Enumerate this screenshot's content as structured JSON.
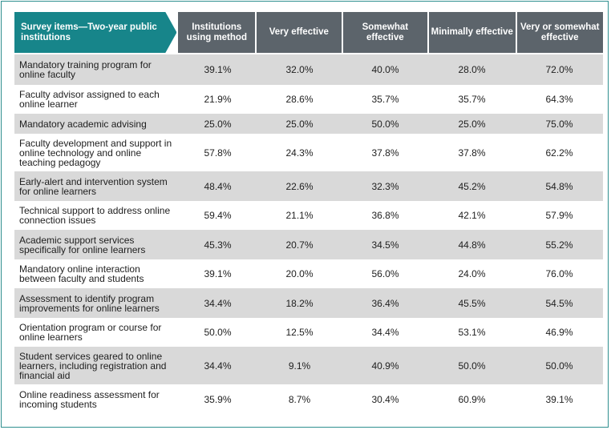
{
  "headers": [
    "Survey items—Two-year public institutions",
    "Institutions using method",
    "Very effective",
    "Somewhat effective",
    "Minimally effective",
    "Very or somewhat effective"
  ],
  "rows": [
    {
      "item": "Mandatory training program for online faculty",
      "values": [
        "39.1%",
        "32.0%",
        "40.0%",
        "28.0%",
        "72.0%"
      ]
    },
    {
      "item": "Faculty advisor assigned to each online learner",
      "values": [
        "21.9%",
        "28.6%",
        "35.7%",
        "35.7%",
        "64.3%"
      ]
    },
    {
      "item": "Mandatory academic advising",
      "values": [
        "25.0%",
        "25.0%",
        "50.0%",
        "25.0%",
        "75.0%"
      ]
    },
    {
      "item": "Faculty development and support in online technology and online teaching pedagogy",
      "values": [
        "57.8%",
        "24.3%",
        "37.8%",
        "37.8%",
        "62.2%"
      ]
    },
    {
      "item": "Early-alert and intervention system for online learners",
      "values": [
        "48.4%",
        "22.6%",
        "32.3%",
        "45.2%",
        "54.8%"
      ]
    },
    {
      "item": "Technical support to address online connection issues",
      "values": [
        "59.4%",
        "21.1%",
        "36.8%",
        "42.1%",
        "57.9%"
      ]
    },
    {
      "item": "Academic support services specifically for online learners",
      "values": [
        "45.3%",
        "20.7%",
        "34.5%",
        "44.8%",
        "55.2%"
      ]
    },
    {
      "item": "Mandatory online interaction between faculty and students",
      "values": [
        "39.1%",
        "20.0%",
        "56.0%",
        "24.0%",
        "76.0%"
      ]
    },
    {
      "item": "Assessment to identify program improvements for online learners",
      "values": [
        "34.4%",
        "18.2%",
        "36.4%",
        "45.5%",
        "54.5%"
      ]
    },
    {
      "item": "Orientation program or course for online learners",
      "values": [
        "50.0%",
        "12.5%",
        "34.4%",
        "53.1%",
        "46.9%"
      ]
    },
    {
      "item": "Student services geared to online learners, including registration and financial aid",
      "values": [
        "34.4%",
        "9.1%",
        "40.9%",
        "50.0%",
        "50.0%"
      ]
    },
    {
      "item": "Online readiness assessment for incoming students",
      "values": [
        "35.9%",
        "8.7%",
        "30.4%",
        "60.9%",
        "39.1%"
      ]
    }
  ],
  "colors": {
    "header_first": "#17858a",
    "header_other": "#5c646b",
    "row_shade": "#d9d9d9",
    "border": "#2f8f8f"
  }
}
